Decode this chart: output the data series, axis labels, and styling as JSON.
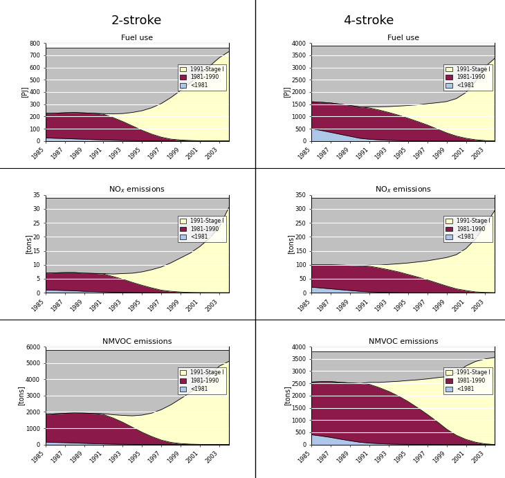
{
  "years": [
    1985,
    1986,
    1987,
    1988,
    1989,
    1990,
    1991,
    1992,
    1993,
    1994,
    1995,
    1996,
    1997,
    1998,
    1999,
    2000,
    2001,
    2002,
    2003,
    2004
  ],
  "colors": {
    "pre1981": "#aec6e8",
    "s1981_1990": "#8b1a4a",
    "s1991_stage1": "#ffffcc",
    "gray": "#c0c0c0"
  },
  "2s_fuel": {
    "pre1981": [
      25,
      22,
      20,
      17,
      14,
      11,
      8,
      6,
      4,
      3,
      2,
      1,
      1,
      0,
      0,
      0,
      0,
      0,
      0,
      0
    ],
    "s1981_1990": [
      200,
      205,
      210,
      215,
      215,
      215,
      210,
      185,
      155,
      120,
      85,
      55,
      30,
      15,
      8,
      4,
      2,
      1,
      0,
      0
    ],
    "s1991_stage1": [
      0,
      0,
      0,
      0,
      0,
      0,
      5,
      30,
      65,
      110,
      160,
      215,
      275,
      340,
      405,
      470,
      540,
      610,
      680,
      730
    ],
    "gray_total": [
      760,
      760,
      760,
      760,
      760,
      760,
      760,
      760,
      760,
      760,
      760,
      760,
      760,
      760,
      760,
      760,
      760,
      760,
      760,
      760
    ]
  },
  "4s_fuel": {
    "pre1981": [
      500,
      430,
      350,
      270,
      190,
      110,
      70,
      45,
      25,
      15,
      8,
      4,
      2,
      1,
      0,
      0,
      0,
      0,
      0,
      0
    ],
    "s1981_1990": [
      1100,
      1150,
      1200,
      1230,
      1260,
      1280,
      1280,
      1220,
      1140,
      1040,
      920,
      790,
      650,
      490,
      330,
      200,
      110,
      50,
      15,
      0
    ],
    "s1991_stage1": [
      0,
      0,
      0,
      0,
      0,
      0,
      50,
      130,
      240,
      370,
      520,
      680,
      870,
      1070,
      1280,
      1530,
      1870,
      2380,
      3020,
      3380
    ],
    "gray_total": [
      3900,
      3900,
      3900,
      3900,
      3900,
      3900,
      3900,
      3900,
      3900,
      3900,
      3900,
      3900,
      3900,
      3900,
      3900,
      3900,
      3900,
      3900,
      3900,
      3900
    ]
  },
  "2s_nox": {
    "pre1981": [
      1.0,
      0.9,
      0.8,
      0.7,
      0.5,
      0.4,
      0.3,
      0.2,
      0.15,
      0.1,
      0.07,
      0.04,
      0.02,
      0.01,
      0.0,
      0.0,
      0.0,
      0.0,
      0.0,
      0.0
    ],
    "s1981_1990": [
      6.0,
      6.2,
      6.4,
      6.5,
      6.5,
      6.5,
      6.4,
      5.6,
      4.7,
      3.6,
      2.6,
      1.7,
      0.9,
      0.5,
      0.25,
      0.1,
      0.05,
      0.02,
      0.01,
      0.0
    ],
    "s1991_stage1": [
      0.0,
      0.0,
      0.0,
      0.0,
      0.0,
      0.0,
      0.15,
      0.9,
      2.0,
      3.3,
      4.8,
      6.5,
      8.3,
      10.2,
      12.2,
      14.1,
      16.5,
      19.5,
      23.5,
      30.5
    ],
    "gray_total": [
      34,
      34,
      34,
      34,
      34,
      34,
      34,
      34,
      34,
      34,
      34,
      34,
      34,
      34,
      34,
      34,
      34,
      34,
      34,
      34
    ]
  },
  "4s_nox": {
    "pre1981": [
      20,
      17,
      14,
      11,
      8,
      5,
      3,
      2,
      1.2,
      0.7,
      0.4,
      0.2,
      0.1,
      0.0,
      0.0,
      0.0,
      0.0,
      0.0,
      0.0,
      0.0
    ],
    "s1981_1990": [
      80,
      83,
      86,
      88,
      90,
      92,
      92,
      87,
      81,
      74,
      65,
      56,
      46,
      35,
      24,
      14,
      8,
      3,
      1,
      0
    ],
    "s1991_stage1": [
      0,
      0,
      0,
      0,
      0,
      0,
      4,
      10,
      19,
      29,
      41,
      54,
      68,
      85,
      102,
      122,
      150,
      190,
      240,
      295
    ],
    "gray_total": [
      340,
      340,
      340,
      340,
      340,
      340,
      340,
      340,
      340,
      340,
      340,
      340,
      340,
      340,
      340,
      340,
      340,
      340,
      340,
      340
    ]
  },
  "2s_nmvoc": {
    "pre1981": [
      150,
      130,
      115,
      95,
      75,
      55,
      40,
      28,
      18,
      11,
      6,
      4,
      2,
      1,
      0,
      0,
      0,
      0,
      0,
      0
    ],
    "s1981_1990": [
      1700,
      1750,
      1800,
      1840,
      1850,
      1850,
      1800,
      1600,
      1350,
      1050,
      750,
      490,
      270,
      130,
      60,
      25,
      10,
      4,
      1,
      0
    ],
    "s1991_stage1": [
      0,
      0,
      0,
      0,
      0,
      0,
      50,
      200,
      420,
      700,
      1050,
      1430,
      1870,
      2310,
      2750,
      3170,
      3650,
      4250,
      4800,
      5100
    ],
    "gray_total": [
      5800,
      5800,
      5800,
      5800,
      5800,
      5800,
      5800,
      5800,
      5800,
      5800,
      5800,
      5800,
      5800,
      5800,
      5800,
      5800,
      5800,
      5800,
      5800,
      5800
    ]
  },
  "4s_nmvoc": {
    "pre1981": [
      400,
      350,
      290,
      220,
      155,
      95,
      60,
      38,
      22,
      13,
      7,
      4,
      2,
      1,
      0,
      0,
      0,
      0,
      0,
      0
    ],
    "s1981_1990": [
      2150,
      2220,
      2280,
      2320,
      2360,
      2400,
      2400,
      2290,
      2150,
      1970,
      1750,
      1500,
      1230,
      940,
      630,
      380,
      210,
      95,
      28,
      0
    ],
    "s1991_stage1": [
      0,
      0,
      0,
      0,
      0,
      0,
      80,
      210,
      390,
      600,
      860,
      1140,
      1450,
      1790,
      2140,
      2560,
      3000,
      3300,
      3470,
      3560
    ],
    "gray_total": [
      3800,
      3800,
      3800,
      3800,
      3800,
      3800,
      3800,
      3800,
      3800,
      3800,
      3800,
      3800,
      3800,
      3800,
      3800,
      3800,
      3800,
      3800,
      3800,
      3800
    ]
  },
  "ylims": {
    "2s_fuel": [
      0,
      800
    ],
    "4s_fuel": [
      0,
      4000
    ],
    "2s_nox": [
      0,
      35
    ],
    "4s_nox": [
      0,
      350
    ],
    "2s_nmvoc": [
      0,
      6000
    ],
    "4s_nmvoc": [
      0,
      4000
    ]
  },
  "yticks": {
    "2s_fuel": [
      0,
      100,
      200,
      300,
      400,
      500,
      600,
      700,
      800
    ],
    "4s_fuel": [
      0,
      500,
      1000,
      1500,
      2000,
      2500,
      3000,
      3500,
      4000
    ],
    "2s_nox": [
      0,
      5,
      10,
      15,
      20,
      25,
      30,
      35
    ],
    "4s_nox": [
      0,
      50,
      100,
      150,
      200,
      250,
      300,
      350
    ],
    "2s_nmvoc": [
      0,
      1000,
      2000,
      3000,
      4000,
      5000,
      6000
    ],
    "4s_nmvoc": [
      0,
      500,
      1000,
      1500,
      2000,
      2500,
      3000,
      3500,
      4000
    ]
  },
  "ylabels": {
    "2s_fuel": "[PJ]",
    "4s_fuel": "[PJ]",
    "2s_nox": "[tons]",
    "4s_nox": "[tons]",
    "2s_nmvoc": "[tons]",
    "4s_nmvoc": "[tons]"
  },
  "titles": {
    "2s_fuel": "Fuel use",
    "4s_fuel": "Fuel use",
    "2s_nox": "NO$_x$ emissions",
    "4s_nox": "NO$_x$ emissions",
    "2s_nmvoc": "NMVOC emissions",
    "4s_nmvoc": "NMVOC emissions"
  },
  "xtick_years": [
    1985,
    1987,
    1989,
    1991,
    1993,
    1995,
    1997,
    1999,
    2001,
    2003
  ]
}
